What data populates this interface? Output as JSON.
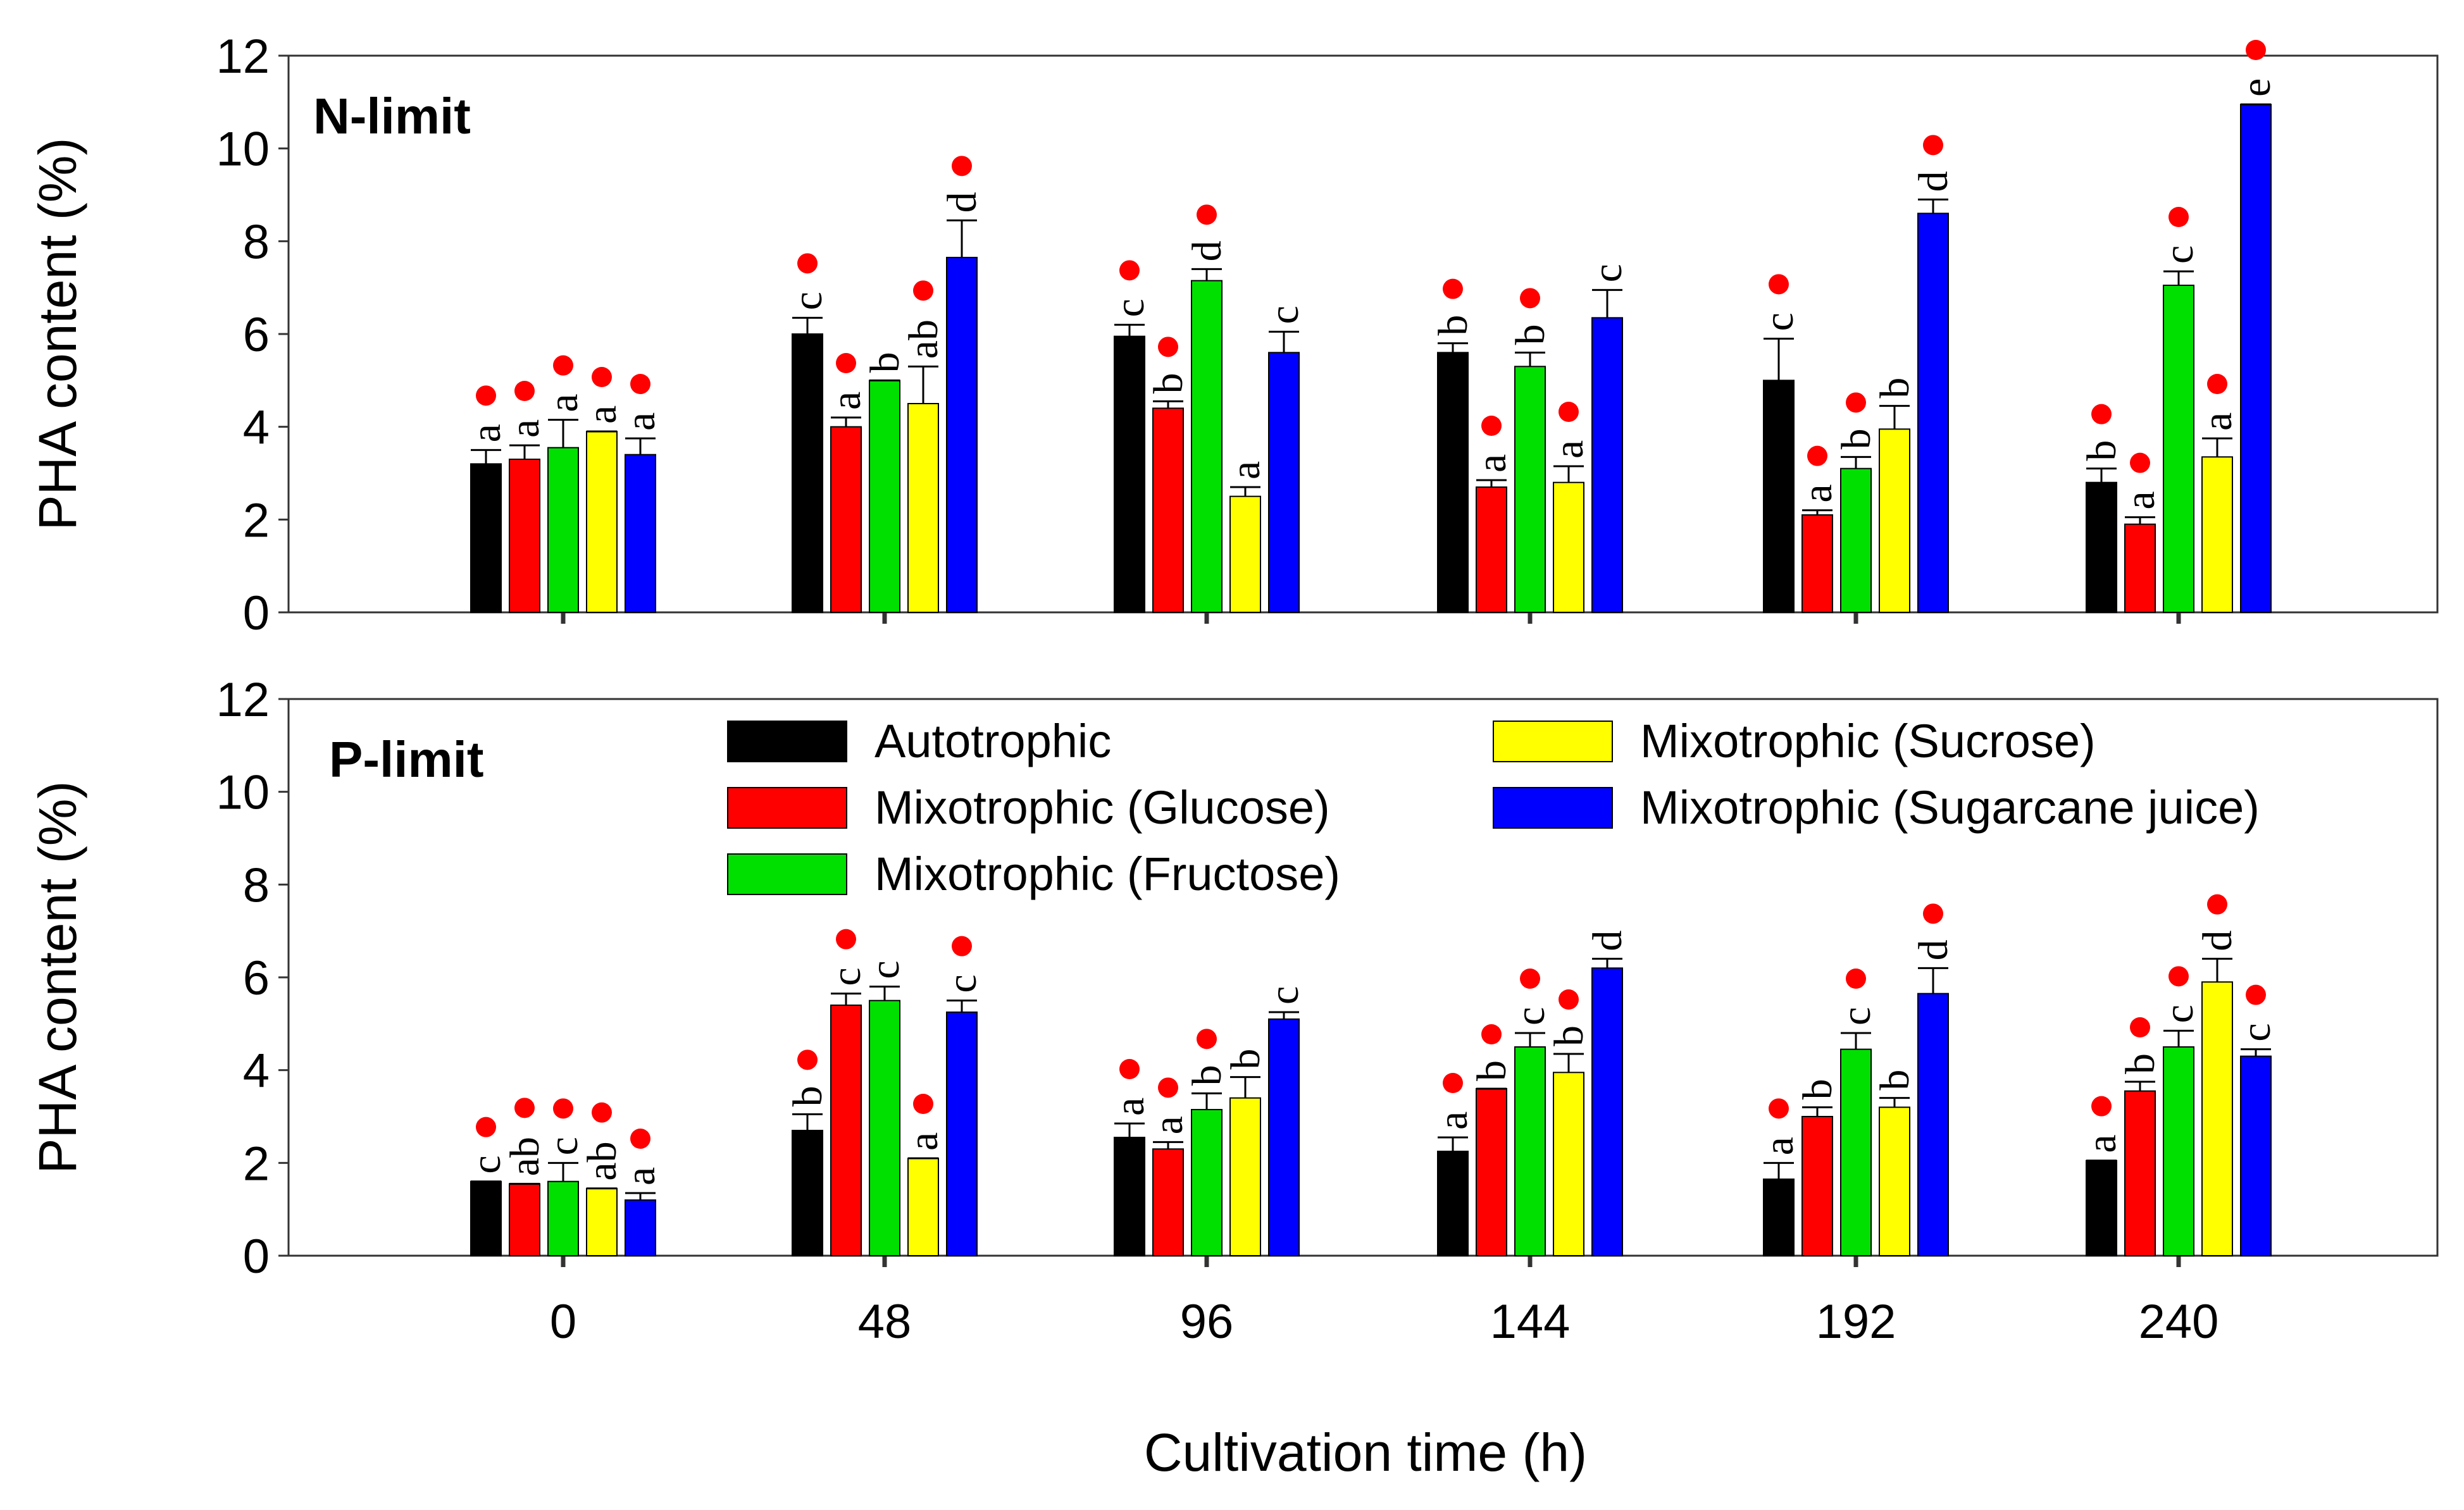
{
  "chart_data": [
    {
      "type": "bar",
      "title": "N-limit",
      "ylabel": "PHA content (%)",
      "xlabel": "",
      "ylim": [
        0,
        12
      ],
      "yticks": [
        0,
        2,
        4,
        6,
        8,
        10,
        12
      ],
      "categories": [
        "0",
        "48",
        "96",
        "144",
        "192",
        "240"
      ],
      "series": [
        {
          "name": "Autotrophic",
          "values": [
            3.2,
            6.0,
            5.95,
            5.6,
            5.0,
            2.8
          ],
          "errors": [
            0.3,
            0.35,
            0.25,
            0.2,
            0.9,
            0.3
          ],
          "letters": [
            "a",
            "c",
            "c",
            "b",
            "c",
            "b"
          ]
        },
        {
          "name": "Mixotrophic (Glucose)",
          "values": [
            3.3,
            4.0,
            4.4,
            2.7,
            2.1,
            1.9
          ],
          "errors": [
            0.3,
            0.2,
            0.15,
            0.15,
            0.1,
            0.15
          ],
          "letters": [
            "a",
            "a",
            "b",
            "a",
            "a",
            "a"
          ]
        },
        {
          "name": "Mixotrophic (Fructose)",
          "values": [
            3.55,
            5.0,
            7.15,
            5.3,
            3.1,
            7.05
          ],
          "errors": [
            0.6,
            0.0,
            0.25,
            0.3,
            0.25,
            0.3
          ],
          "letters": [
            "a",
            "b",
            "d",
            "b",
            "b",
            "c"
          ]
        },
        {
          "name": "Mixotrophic (Sucrose)",
          "values": [
            3.9,
            4.5,
            2.5,
            2.8,
            3.95,
            3.35
          ],
          "errors": [
            0.0,
            0.8,
            0.2,
            0.35,
            0.5,
            0.4
          ],
          "letters": [
            "a",
            "ab",
            "a",
            "a",
            "b",
            "a"
          ]
        },
        {
          "name": "Mixotrophic (Sugarcane juice)",
          "values": [
            3.4,
            7.65,
            5.6,
            6.35,
            8.6,
            10.95
          ],
          "errors": [
            0.35,
            0.8,
            0.45,
            0.6,
            0.3,
            0.0
          ],
          "letters": [
            "a",
            "d",
            "c",
            "c",
            "d",
            "e"
          ]
        }
      ],
      "markers": [
        [
          true,
          true,
          true,
          true,
          true
        ],
        [
          true,
          true,
          false,
          true,
          true
        ],
        [
          true,
          true,
          true,
          false,
          false
        ],
        [
          true,
          true,
          true,
          true,
          false
        ],
        [
          true,
          true,
          true,
          false,
          true
        ],
        [
          true,
          true,
          true,
          true,
          true
        ]
      ]
    },
    {
      "type": "bar",
      "title": "P-limit",
      "ylabel": "PHA content (%)",
      "xlabel": "Cultivation time (h)",
      "ylim": [
        0,
        12
      ],
      "yticks": [
        0,
        2,
        4,
        6,
        8,
        10,
        12
      ],
      "categories": [
        "0",
        "48",
        "96",
        "144",
        "192",
        "240"
      ],
      "series": [
        {
          "name": "Autotrophic",
          "values": [
            1.6,
            2.7,
            2.55,
            2.25,
            1.65,
            2.05
          ],
          "errors": [
            0.0,
            0.35,
            0.3,
            0.3,
            0.35,
            0.0
          ],
          "letters": [
            "c",
            "b",
            "a",
            "a",
            "a",
            "a"
          ]
        },
        {
          "name": "Mixotrophic (Glucose)",
          "values": [
            1.55,
            5.4,
            2.3,
            3.6,
            3.0,
            3.55
          ],
          "errors": [
            0.0,
            0.25,
            0.15,
            0.0,
            0.2,
            0.2
          ],
          "letters": [
            "ab",
            "c",
            "a",
            "b",
            "b",
            "b"
          ]
        },
        {
          "name": "Mixotrophic (Fructose)",
          "values": [
            1.6,
            5.5,
            3.15,
            4.5,
            4.45,
            4.5
          ],
          "errors": [
            0.4,
            0.3,
            0.35,
            0.3,
            0.35,
            0.35
          ],
          "letters": [
            "c",
            "c",
            "b",
            "c",
            "c",
            "c"
          ]
        },
        {
          "name": "Mixotrophic (Sucrose)",
          "values": [
            1.45,
            2.1,
            3.4,
            3.95,
            3.2,
            5.9
          ],
          "errors": [
            0.0,
            0.0,
            0.45,
            0.4,
            0.2,
            0.5
          ],
          "letters": [
            "ab",
            "a",
            "b",
            "b",
            "b",
            "d"
          ]
        },
        {
          "name": "Mixotrophic (Sugarcane juice)",
          "values": [
            1.2,
            5.25,
            5.1,
            6.2,
            5.65,
            4.3
          ],
          "errors": [
            0.15,
            0.25,
            0.15,
            0.2,
            0.55,
            0.15
          ],
          "letters": [
            "a",
            "c",
            "c",
            "d",
            "d",
            "c"
          ]
        }
      ],
      "markers": [
        [
          true,
          true,
          true,
          true,
          true
        ],
        [
          true,
          true,
          false,
          true,
          true
        ],
        [
          true,
          true,
          true,
          false,
          false
        ],
        [
          true,
          true,
          true,
          true,
          false
        ],
        [
          true,
          false,
          true,
          false,
          true
        ],
        [
          true,
          true,
          true,
          true,
          true
        ]
      ]
    }
  ],
  "legend": {
    "placement": "top-center of lower panel",
    "items": [
      {
        "label": "Autotrophic",
        "color": "#000000"
      },
      {
        "label": "Mixotrophic (Glucose)",
        "color": "#ff0000"
      },
      {
        "label": "Mixotrophic (Fructose)",
        "color": "#00e000"
      },
      {
        "label": "Mixotrophic (Sucrose)",
        "color": "#ffff00"
      },
      {
        "label": "Mixotrophic (Sugarcane juice)",
        "color": "#0000ff"
      }
    ]
  },
  "colors": {
    "series": [
      "#000000",
      "#ff0000",
      "#00e000",
      "#ffff00",
      "#0000ff"
    ],
    "marker": "#ff0000"
  }
}
